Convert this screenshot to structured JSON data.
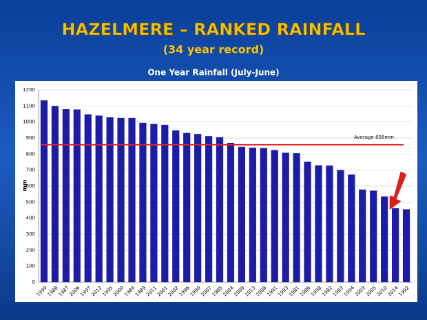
{
  "chart_data": {
    "type": "bar",
    "title": "HAZELMERE – RANKED RAINFALL",
    "subtitle": "(34 year record)",
    "chart_title": "One Year Rainfall (July-June)",
    "ylabel": "mm",
    "categories": [
      "1999",
      "1988",
      "1987",
      "2006",
      "1997",
      "2012",
      "1995",
      "2000",
      "1984",
      "1989",
      "2011",
      "2001",
      "2002",
      "1996",
      "1990",
      "2007",
      "1985",
      "2004",
      "2009",
      "2013",
      "2008",
      "1991",
      "1993",
      "1981",
      "1986",
      "1998",
      "1982",
      "1983",
      "1994",
      "2003",
      "2005",
      "2010",
      "2014",
      "1992"
    ],
    "values": [
      1135,
      1100,
      1080,
      1078,
      1048,
      1040,
      1030,
      1025,
      1025,
      995,
      988,
      982,
      948,
      932,
      925,
      912,
      905,
      870,
      845,
      840,
      838,
      825,
      808,
      805,
      752,
      730,
      728,
      700,
      672,
      578,
      572,
      535,
      462,
      455
    ],
    "color": "#1c1ca6",
    "average": 858,
    "average_label": "Average 858mm",
    "average_color": "#e02020",
    "ylim": [
      0,
      1200
    ],
    "yticks": [
      0,
      100,
      200,
      300,
      400,
      500,
      600,
      700,
      800,
      900,
      1000,
      1100,
      1200
    ],
    "grid": true
  }
}
